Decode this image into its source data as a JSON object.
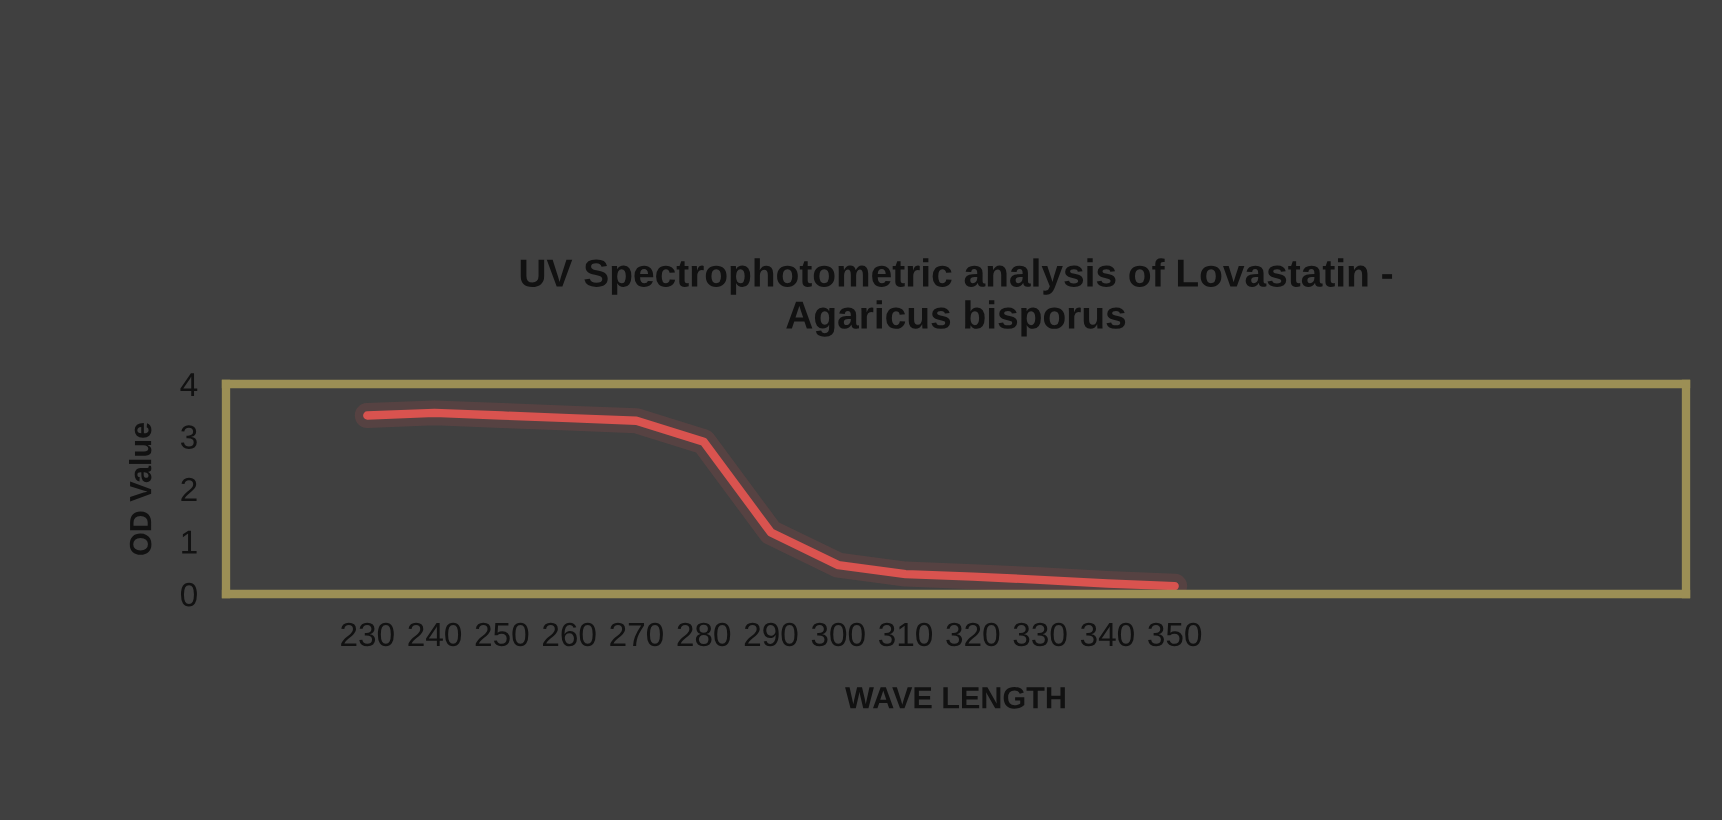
{
  "chart_data": {
    "type": "line",
    "title": "UV Spectrophotometric analysis of Lovastatin -\nAgaricus bisporus",
    "xlabel": "WAVE LENGTH",
    "ylabel": "OD Value",
    "categories": [
      "230",
      "240",
      "250",
      "260",
      "270",
      "280",
      "290",
      "300",
      "310",
      "320",
      "330",
      "340",
      "350"
    ],
    "series": [
      {
        "color": "#d9534f",
        "values": [
          3.4,
          3.45,
          3.4,
          3.35,
          3.3,
          2.9,
          1.17,
          0.55,
          0.38,
          0.33,
          0.27,
          0.2,
          0.15
        ]
      }
    ],
    "ylim": [
      0,
      4
    ],
    "yticks": [
      0,
      1,
      2,
      3,
      4
    ],
    "grid": false,
    "legend": false,
    "marker": "none",
    "line_style": "solid"
  }
}
